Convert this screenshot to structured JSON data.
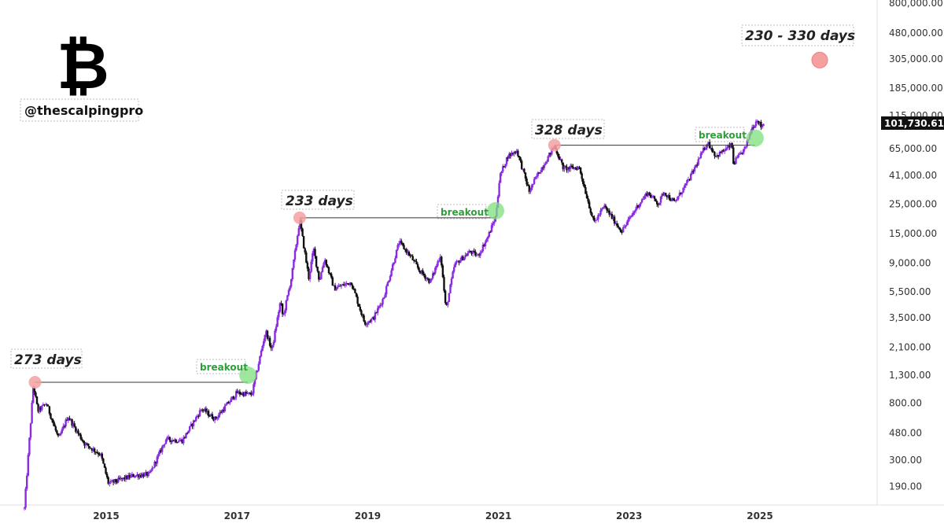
{
  "brand": {
    "logo_icon": "bitcoin-icon",
    "logo_glyph": "₿",
    "handle": "@thescalpingpro"
  },
  "colors": {
    "up": "#8a2be2",
    "down": "#111111",
    "peak_marker": "#f4a0a0",
    "breakout_marker": "#7ee07e",
    "breakout_text": "#2e9e3a",
    "price_tag_bg": "#111111"
  },
  "chart_data": {
    "type": "candlestick",
    "scale": "log",
    "x_ticks": [
      "2015",
      "2017",
      "2019",
      "2021",
      "2023",
      "2025"
    ],
    "y_ticks": [
      "800,000.00",
      "480,000.00",
      "305,000.00",
      "185,000.00",
      "115,000.00",
      "65,000.00",
      "41,000.00",
      "25,000.00",
      "15,000.00",
      "9,000.00",
      "5,500.00",
      "3,500.00",
      "2,100.00",
      "1,300.00",
      "800.00",
      "480.00",
      "300.00",
      "190.00"
    ],
    "current_price": "101,730.61",
    "grid": false,
    "series_path": [
      [
        "2013-10-01",
        130
      ],
      [
        "2013-11-20",
        1100
      ],
      [
        "2013-12-15",
        700
      ],
      [
        "2014-02-01",
        800
      ],
      [
        "2014-04-10",
        430
      ],
      [
        "2014-06-01",
        640
      ],
      [
        "2014-09-01",
        400
      ],
      [
        "2014-12-01",
        330
      ],
      [
        "2015-01-14",
        200
      ],
      [
        "2015-06-01",
        230
      ],
      [
        "2015-09-01",
        235
      ],
      [
        "2015-12-01",
        430
      ],
      [
        "2016-03-01",
        420
      ],
      [
        "2016-06-17",
        730
      ],
      [
        "2016-09-01",
        610
      ],
      [
        "2016-12-31",
        960
      ],
      [
        "2017-03-25",
        930
      ],
      [
        "2017-06-10",
        2800
      ],
      [
        "2017-07-15",
        2000
      ],
      [
        "2017-09-01",
        4700
      ],
      [
        "2017-09-15",
        3500
      ],
      [
        "2017-11-01",
        7000
      ],
      [
        "2017-12-17",
        19000
      ],
      [
        "2018-02-06",
        7000
      ],
      [
        "2018-03-05",
        11500
      ],
      [
        "2018-04-06",
        6600
      ],
      [
        "2018-05-05",
        9800
      ],
      [
        "2018-06-28",
        5800
      ],
      [
        "2018-10-01",
        6500
      ],
      [
        "2018-12-15",
        3200
      ],
      [
        "2019-02-01",
        3450
      ],
      [
        "2019-04-01",
        5000
      ],
      [
        "2019-06-26",
        13000
      ],
      [
        "2019-09-01",
        10000
      ],
      [
        "2019-10-15",
        8000
      ],
      [
        "2019-12-17",
        6500
      ],
      [
        "2020-02-13",
        10500
      ],
      [
        "2020-03-13",
        4000
      ],
      [
        "2020-05-01",
        8800
      ],
      [
        "2020-07-27",
        11000
      ],
      [
        "2020-09-08",
        10200
      ],
      [
        "2020-11-01",
        14000
      ],
      [
        "2020-12-16",
        20000
      ],
      [
        "2021-01-08",
        40000
      ],
      [
        "2021-02-21",
        57000
      ],
      [
        "2021-04-14",
        63000
      ],
      [
        "2021-06-22",
        31000
      ],
      [
        "2021-08-01",
        40000
      ],
      [
        "2021-11-10",
        68000
      ],
      [
        "2021-12-31",
        46000
      ],
      [
        "2022-03-28",
        47000
      ],
      [
        "2022-06-18",
        18000
      ],
      [
        "2022-08-15",
        24000
      ],
      [
        "2022-10-01",
        19500
      ],
      [
        "2022-11-21",
        15600
      ],
      [
        "2023-02-15",
        24000
      ],
      [
        "2023-04-14",
        30500
      ],
      [
        "2023-06-15",
        25000
      ],
      [
        "2023-07-14",
        31000
      ],
      [
        "2023-09-11",
        25500
      ],
      [
        "2023-12-01",
        38000
      ],
      [
        "2024-03-14",
        73000
      ],
      [
        "2024-05-01",
        57000
      ],
      [
        "2024-07-29",
        69500
      ],
      [
        "2024-08-05",
        50000
      ],
      [
        "2024-10-15",
        67000
      ],
      [
        "2024-11-12",
        90000
      ],
      [
        "2024-12-17",
        108000
      ],
      [
        "2025-01-10",
        94000
      ],
      [
        "2025-01-25",
        104000
      ]
    ],
    "horizontal_lines": [
      {
        "from": "2013-11-29",
        "to": "2017-03-03",
        "price": 1150
      },
      {
        "from": "2017-12-17",
        "to": "2020-12-16",
        "price": 19700
      },
      {
        "from": "2021-11-10",
        "to": "2024-12-05",
        "price": 69000
      }
    ],
    "peak_markers": [
      {
        "date": "2013-11-29",
        "price": 1150
      },
      {
        "date": "2017-12-17",
        "price": 19700
      },
      {
        "date": "2021-11-10",
        "price": 69000
      },
      {
        "date": "2025-12-01",
        "price": 300000
      }
    ],
    "breakout_markers": [
      {
        "date": "2017-03-03",
        "price": 1150
      },
      {
        "date": "2020-12-16",
        "price": 19700
      },
      {
        "date": "2024-12-05",
        "price": 69000
      }
    ],
    "annotations": {
      "cycle_1": "273 days",
      "cycle_2": "233 days",
      "cycle_3": "328 days",
      "projection": "230 - 330 days",
      "breakout_1": "breakout",
      "breakout_2": "breakout",
      "breakout_3": "breakout"
    }
  }
}
